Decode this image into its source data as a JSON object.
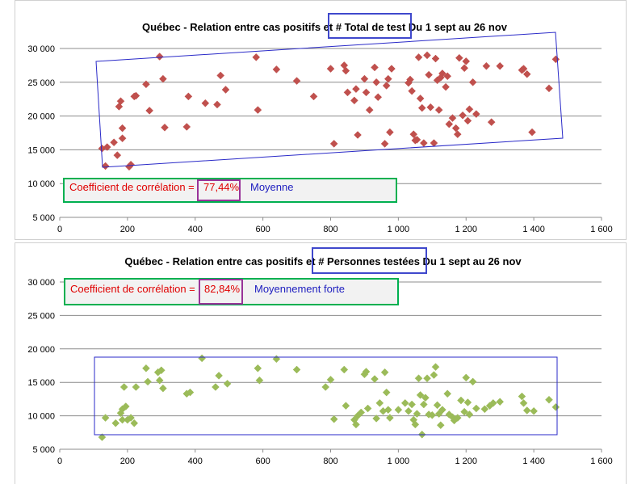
{
  "chart_data": [
    {
      "type": "scatter",
      "title": "Québec - Relation entre cas positifs et # Total de test Du 1 sept au 26 nov",
      "title_parts": [
        "Québec - Relation entre cas positifs et ",
        "# Total de test",
        " Du 1 sept au 26 nov"
      ],
      "x_ticks": [
        "0",
        "200",
        "400",
        "600",
        "800",
        "1 000",
        "1 200",
        "1 400",
        "1 600"
      ],
      "y_ticks": [
        "5 000",
        "10 000",
        "15 000",
        "20 000",
        "25 000",
        "30 000"
      ],
      "xlim": [
        0,
        1600
      ],
      "ylim": [
        5000,
        30000
      ],
      "grid": true,
      "marker": "diamond",
      "color": "#c0504d",
      "annotation": {
        "label": "Coefficient de corrélation = ",
        "value": "77,44%",
        "strength": "Moyenne"
      },
      "points": [
        [
          125,
          15200
        ],
        [
          140,
          15400
        ],
        [
          135,
          12600
        ],
        [
          160,
          16100
        ],
        [
          170,
          14200
        ],
        [
          175,
          21400
        ],
        [
          180,
          22200
        ],
        [
          185,
          18200
        ],
        [
          185,
          16700
        ],
        [
          205,
          12500
        ],
        [
          210,
          12800
        ],
        [
          220,
          22900
        ],
        [
          225,
          23000
        ],
        [
          255,
          24700
        ],
        [
          265,
          20800
        ],
        [
          295,
          28800
        ],
        [
          305,
          25500
        ],
        [
          310,
          18300
        ],
        [
          375,
          18400
        ],
        [
          380,
          22900
        ],
        [
          430,
          21900
        ],
        [
          465,
          21700
        ],
        [
          475,
          26000
        ],
        [
          490,
          23900
        ],
        [
          580,
          28700
        ],
        [
          585,
          20900
        ],
        [
          640,
          26900
        ],
        [
          700,
          25200
        ],
        [
          750,
          22900
        ],
        [
          800,
          27000
        ],
        [
          810,
          15900
        ],
        [
          840,
          27500
        ],
        [
          845,
          26700
        ],
        [
          850,
          23500
        ],
        [
          870,
          22300
        ],
        [
          875,
          24000
        ],
        [
          880,
          17200
        ],
        [
          900,
          25500
        ],
        [
          905,
          23500
        ],
        [
          915,
          20900
        ],
        [
          930,
          27200
        ],
        [
          935,
          25000
        ],
        [
          940,
          22800
        ],
        [
          960,
          15900
        ],
        [
          965,
          24500
        ],
        [
          970,
          25500
        ],
        [
          975,
          17600
        ],
        [
          980,
          27000
        ],
        [
          1030,
          24900
        ],
        [
          1035,
          25400
        ],
        [
          1040,
          23700
        ],
        [
          1045,
          17300
        ],
        [
          1050,
          16400
        ],
        [
          1055,
          16500
        ],
        [
          1060,
          28700
        ],
        [
          1065,
          22600
        ],
        [
          1070,
          21200
        ],
        [
          1075,
          16000
        ],
        [
          1085,
          29000
        ],
        [
          1090,
          26100
        ],
        [
          1095,
          21300
        ],
        [
          1105,
          16000
        ],
        [
          1110,
          28500
        ],
        [
          1115,
          25300
        ],
        [
          1120,
          20900
        ],
        [
          1125,
          25700
        ],
        [
          1130,
          26300
        ],
        [
          1140,
          24300
        ],
        [
          1145,
          25900
        ],
        [
          1150,
          18800
        ],
        [
          1160,
          19700
        ],
        [
          1170,
          18200
        ],
        [
          1175,
          17300
        ],
        [
          1180,
          28600
        ],
        [
          1190,
          20100
        ],
        [
          1195,
          27100
        ],
        [
          1200,
          28100
        ],
        [
          1205,
          19300
        ],
        [
          1210,
          21000
        ],
        [
          1220,
          25000
        ],
        [
          1230,
          20300
        ],
        [
          1260,
          27400
        ],
        [
          1275,
          19100
        ],
        [
          1300,
          27400
        ],
        [
          1365,
          26800
        ],
        [
          1370,
          27000
        ],
        [
          1380,
          26200
        ],
        [
          1395,
          17600
        ],
        [
          1445,
          24100
        ],
        [
          1465,
          28400
        ]
      ]
    },
    {
      "type": "scatter",
      "title": "Québec - Relation entre cas positifs et # Personnes testées Du 1 sept au 26 nov",
      "title_parts": [
        "Québec - Relation entre cas positifs et ",
        "# Personnes testées",
        " Du 1 sept au 26 nov"
      ],
      "x_ticks": [
        "0",
        "200",
        "400",
        "600",
        "800",
        "1 000",
        "1 200",
        "1 400",
        "1 600"
      ],
      "y_ticks": [
        "5 000",
        "10 000",
        "15 000",
        "20 000",
        "25 000",
        "30 000"
      ],
      "xlim": [
        0,
        1600
      ],
      "ylim": [
        5000,
        30000
      ],
      "grid": true,
      "marker": "diamond",
      "color": "#9bbb59",
      "annotation": {
        "label": "Coefficient de corrélation = ",
        "value": "82,84%",
        "strength": "Moyennement forte"
      },
      "points": [
        [
          125,
          6800
        ],
        [
          135,
          9700
        ],
        [
          165,
          8900
        ],
        [
          180,
          10400
        ],
        [
          185,
          11000
        ],
        [
          185,
          9400
        ],
        [
          190,
          14300
        ],
        [
          195,
          11400
        ],
        [
          200,
          9400
        ],
        [
          210,
          9700
        ],
        [
          220,
          8900
        ],
        [
          225,
          14300
        ],
        [
          255,
          17100
        ],
        [
          260,
          15100
        ],
        [
          290,
          16500
        ],
        [
          295,
          15300
        ],
        [
          300,
          16800
        ],
        [
          305,
          14100
        ],
        [
          375,
          13300
        ],
        [
          385,
          13500
        ],
        [
          420,
          18600
        ],
        [
          460,
          14300
        ],
        [
          470,
          16000
        ],
        [
          495,
          14800
        ],
        [
          585,
          17100
        ],
        [
          590,
          15300
        ],
        [
          640,
          18500
        ],
        [
          700,
          16900
        ],
        [
          785,
          14300
        ],
        [
          800,
          15400
        ],
        [
          810,
          9500
        ],
        [
          840,
          16900
        ],
        [
          845,
          11500
        ],
        [
          870,
          9400
        ],
        [
          875,
          8700
        ],
        [
          880,
          10000
        ],
        [
          890,
          10500
        ],
        [
          900,
          16200
        ],
        [
          905,
          16600
        ],
        [
          910,
          11100
        ],
        [
          930,
          15500
        ],
        [
          935,
          9600
        ],
        [
          945,
          11900
        ],
        [
          955,
          10700
        ],
        [
          960,
          16500
        ],
        [
          965,
          13500
        ],
        [
          970,
          10900
        ],
        [
          975,
          9700
        ],
        [
          1000,
          10900
        ],
        [
          1020,
          11900
        ],
        [
          1030,
          10700
        ],
        [
          1040,
          11700
        ],
        [
          1045,
          9400
        ],
        [
          1050,
          8700
        ],
        [
          1055,
          10300
        ],
        [
          1060,
          15600
        ],
        [
          1065,
          13100
        ],
        [
          1070,
          7200
        ],
        [
          1075,
          11700
        ],
        [
          1080,
          12700
        ],
        [
          1085,
          15600
        ],
        [
          1090,
          10200
        ],
        [
          1100,
          10100
        ],
        [
          1105,
          16100
        ],
        [
          1110,
          17300
        ],
        [
          1115,
          11600
        ],
        [
          1120,
          10300
        ],
        [
          1125,
          8600
        ],
        [
          1130,
          10900
        ],
        [
          1145,
          13300
        ],
        [
          1150,
          10200
        ],
        [
          1160,
          9800
        ],
        [
          1165,
          9300
        ],
        [
          1175,
          9700
        ],
        [
          1185,
          12300
        ],
        [
          1195,
          10600
        ],
        [
          1200,
          15700
        ],
        [
          1205,
          12000
        ],
        [
          1210,
          10200
        ],
        [
          1220,
          15100
        ],
        [
          1230,
          11100
        ],
        [
          1255,
          11000
        ],
        [
          1270,
          11500
        ],
        [
          1280,
          11900
        ],
        [
          1300,
          12100
        ],
        [
          1365,
          12900
        ],
        [
          1370,
          11900
        ],
        [
          1380,
          10800
        ],
        [
          1400,
          10700
        ],
        [
          1445,
          12400
        ],
        [
          1465,
          11300
        ]
      ]
    }
  ]
}
